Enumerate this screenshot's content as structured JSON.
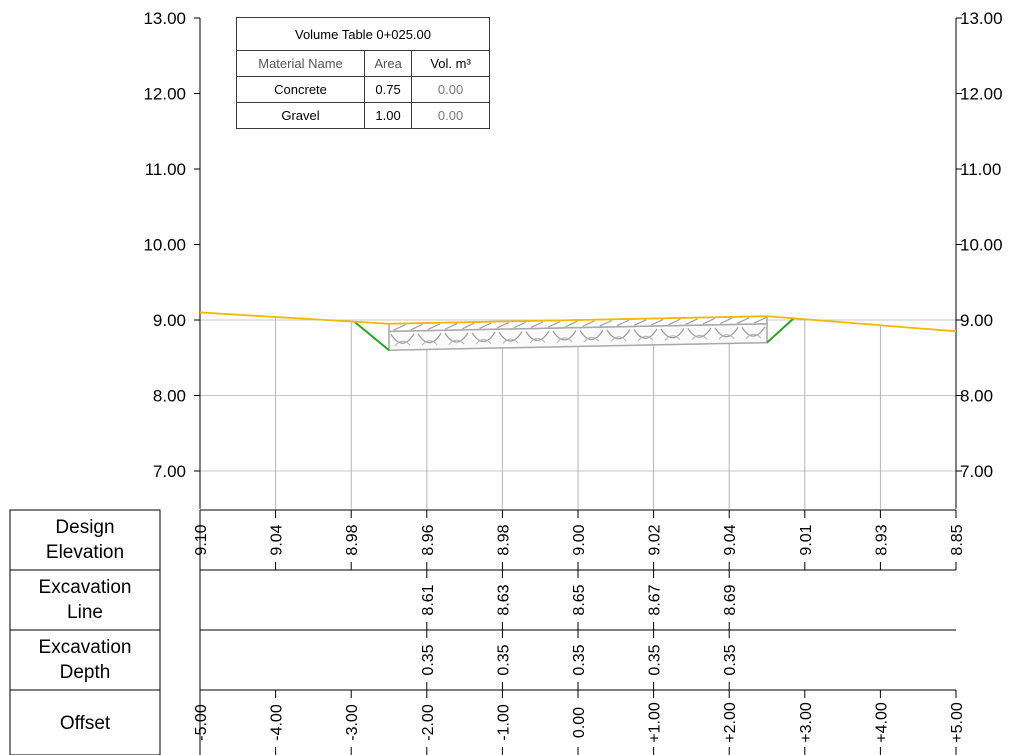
{
  "chart_data": {
    "type": "cross-section",
    "y_axis": {
      "ylim": [
        6.5,
        13.0
      ],
      "ticks": [
        "7.00",
        "8.00",
        "9.00",
        "10.00",
        "11.00",
        "12.00",
        "13.00"
      ]
    },
    "x_axis": {
      "xlim": [
        -5,
        5
      ]
    },
    "ground_line": {
      "color": "#f5b700",
      "points": [
        [
          -5.0,
          9.1
        ],
        [
          -4.0,
          9.04
        ],
        [
          -3.0,
          8.98
        ],
        [
          -2.5,
          8.95
        ],
        [
          2.5,
          9.05
        ],
        [
          3.0,
          9.01
        ],
        [
          4.0,
          8.93
        ],
        [
          5.0,
          8.85
        ]
      ]
    },
    "excavation_slopes": {
      "color": "#22aa22",
      "left": [
        [
          -2.95,
          8.97
        ],
        [
          -2.5,
          8.6
        ]
      ],
      "right": [
        [
          2.5,
          8.7
        ],
        [
          2.85,
          9.02
        ]
      ]
    },
    "layers": {
      "concrete": {
        "left_x": -2.5,
        "right_x": 2.5,
        "top": [
          8.95,
          9.05
        ],
        "bottom": [
          8.85,
          8.95
        ]
      },
      "gravel": {
        "left_x": -2.5,
        "right_x": 2.5,
        "top": [
          8.85,
          8.95
        ],
        "bottom": [
          8.6,
          8.7
        ]
      }
    },
    "volume_table": {
      "title": "Volume Table 0+025.00",
      "headers": [
        "Material Name",
        "Area",
        "Vol. m³"
      ],
      "rows": [
        {
          "name": "Concrete",
          "area": "0.75",
          "vol": "0.00"
        },
        {
          "name": "Gravel",
          "area": "1.00",
          "vol": "0.00"
        }
      ]
    },
    "bands": [
      {
        "label_line1": "Design",
        "label_line2": "Elevation",
        "values": [
          {
            "x": -5,
            "text": "9.10"
          },
          {
            "x": -4,
            "text": "9.04"
          },
          {
            "x": -3,
            "text": "8.98"
          },
          {
            "x": -2,
            "text": "8.96"
          },
          {
            "x": -1,
            "text": "8.98"
          },
          {
            "x": 0,
            "text": "9.00"
          },
          {
            "x": 1,
            "text": "9.02"
          },
          {
            "x": 2,
            "text": "9.04"
          },
          {
            "x": 3,
            "text": "9.01"
          },
          {
            "x": 4,
            "text": "8.93"
          },
          {
            "x": 5,
            "text": "8.85"
          }
        ]
      },
      {
        "label_line1": "Excavation",
        "label_line2": "Line",
        "values": [
          {
            "x": -2,
            "text": "8.61"
          },
          {
            "x": -1,
            "text": "8.63"
          },
          {
            "x": 0,
            "text": "8.65"
          },
          {
            "x": 1,
            "text": "8.67"
          },
          {
            "x": 2,
            "text": "8.69"
          }
        ]
      },
      {
        "label_line1": "Excavation",
        "label_line2": "Depth",
        "values": [
          {
            "x": -2,
            "text": "0.35"
          },
          {
            "x": -1,
            "text": "0.35"
          },
          {
            "x": 0,
            "text": "0.35"
          },
          {
            "x": 1,
            "text": "0.35"
          },
          {
            "x": 2,
            "text": "0.35"
          }
        ]
      },
      {
        "label_line1": "Offset",
        "label_line2": "",
        "values": [
          {
            "x": -5,
            "text": "-5.00"
          },
          {
            "x": -4,
            "text": "-4.00"
          },
          {
            "x": -3,
            "text": "-3.00"
          },
          {
            "x": -2,
            "text": "-2.00"
          },
          {
            "x": -1,
            "text": "-1.00"
          },
          {
            "x": 0,
            "text": "0.00"
          },
          {
            "x": 1,
            "text": "+1.00"
          },
          {
            "x": 2,
            "text": "+2.00"
          },
          {
            "x": 3,
            "text": "+3.00"
          },
          {
            "x": 4,
            "text": "+4.00"
          },
          {
            "x": 5,
            "text": "+5.00"
          }
        ]
      }
    ]
  }
}
